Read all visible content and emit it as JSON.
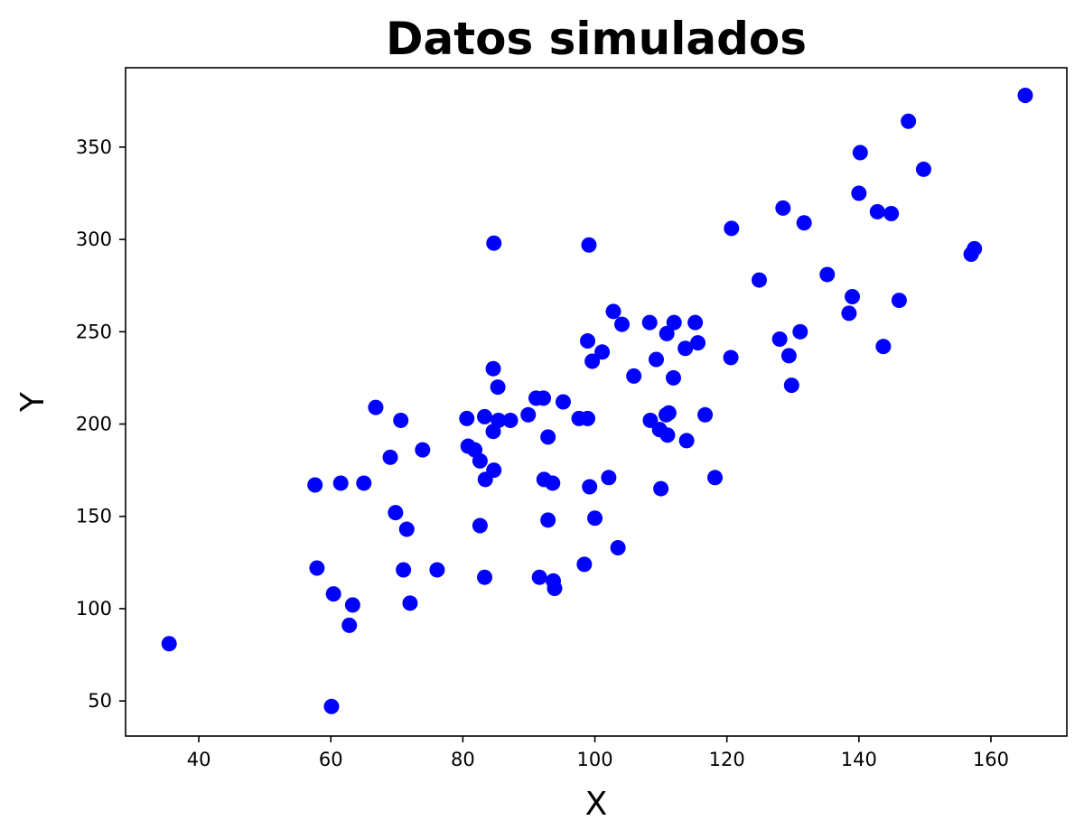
{
  "chart_data": {
    "type": "scatter",
    "title": "Datos simulados",
    "xlabel": "X",
    "ylabel": "Y",
    "xlim": [
      28.9,
      171.5
    ],
    "ylim": [
      31,
      393
    ],
    "xticks": [
      40,
      60,
      80,
      100,
      120,
      140,
      160
    ],
    "yticks": [
      50,
      100,
      150,
      200,
      250,
      300,
      350
    ],
    "grid": false,
    "legend": "none",
    "marker_color": "#0000ff",
    "series": [
      {
        "points": [
          [
            35.5,
            81
          ],
          [
            57.6,
            167
          ],
          [
            57.9,
            122
          ],
          [
            60.1,
            47
          ],
          [
            60.4,
            108
          ],
          [
            61.5,
            168
          ],
          [
            62.8,
            91
          ],
          [
            63.3,
            102
          ],
          [
            65.0,
            168
          ],
          [
            66.8,
            209
          ],
          [
            69.0,
            182
          ],
          [
            69.8,
            152
          ],
          [
            70.6,
            202
          ],
          [
            71.0,
            121
          ],
          [
            71.5,
            143
          ],
          [
            72.0,
            103
          ],
          [
            73.9,
            186
          ],
          [
            76.1,
            121
          ],
          [
            80.6,
            203
          ],
          [
            80.8,
            188
          ],
          [
            81.8,
            186
          ],
          [
            82.6,
            145
          ],
          [
            82.6,
            180
          ],
          [
            83.3,
            204
          ],
          [
            83.3,
            117
          ],
          [
            83.4,
            170
          ],
          [
            84.6,
            230
          ],
          [
            84.6,
            196
          ],
          [
            84.7,
            298
          ],
          [
            84.7,
            175
          ],
          [
            85.3,
            220
          ],
          [
            85.4,
            202
          ],
          [
            87.2,
            202
          ],
          [
            89.9,
            205
          ],
          [
            91.1,
            214
          ],
          [
            91.6,
            117
          ],
          [
            92.2,
            214
          ],
          [
            92.3,
            170
          ],
          [
            92.9,
            148
          ],
          [
            92.9,
            193
          ],
          [
            93.6,
            168
          ],
          [
            93.7,
            115
          ],
          [
            93.9,
            111
          ],
          [
            95.2,
            212
          ],
          [
            97.6,
            203
          ],
          [
            98.4,
            124
          ],
          [
            98.9,
            203
          ],
          [
            98.9,
            245
          ],
          [
            99.1,
            297
          ],
          [
            99.2,
            166
          ],
          [
            99.6,
            234
          ],
          [
            100.0,
            149
          ],
          [
            101.1,
            239
          ],
          [
            102.1,
            171
          ],
          [
            102.8,
            261
          ],
          [
            103.5,
            133
          ],
          [
            104.1,
            254
          ],
          [
            105.9,
            226
          ],
          [
            108.3,
            255
          ],
          [
            108.4,
            202
          ],
          [
            109.3,
            235
          ],
          [
            109.8,
            197
          ],
          [
            110.0,
            165
          ],
          [
            110.8,
            205
          ],
          [
            110.9,
            249
          ],
          [
            111.0,
            194
          ],
          [
            111.2,
            206
          ],
          [
            111.9,
            225
          ],
          [
            112.0,
            255
          ],
          [
            113.7,
            241
          ],
          [
            113.9,
            191
          ],
          [
            115.2,
            255
          ],
          [
            115.6,
            244
          ],
          [
            116.7,
            205
          ],
          [
            118.2,
            171
          ],
          [
            120.6,
            236
          ],
          [
            120.7,
            306
          ],
          [
            124.9,
            278
          ],
          [
            128.0,
            246
          ],
          [
            128.5,
            317
          ],
          [
            129.4,
            237
          ],
          [
            129.8,
            221
          ],
          [
            131.1,
            250
          ],
          [
            131.7,
            309
          ],
          [
            135.2,
            281
          ],
          [
            138.5,
            260
          ],
          [
            139.0,
            269
          ],
          [
            140.0,
            325
          ],
          [
            140.2,
            347
          ],
          [
            142.8,
            315
          ],
          [
            143.7,
            242
          ],
          [
            144.9,
            314
          ],
          [
            146.1,
            267
          ],
          [
            147.5,
            364
          ],
          [
            149.8,
            338
          ],
          [
            157.0,
            292
          ],
          [
            157.5,
            295
          ],
          [
            165.2,
            378
          ]
        ]
      }
    ]
  }
}
